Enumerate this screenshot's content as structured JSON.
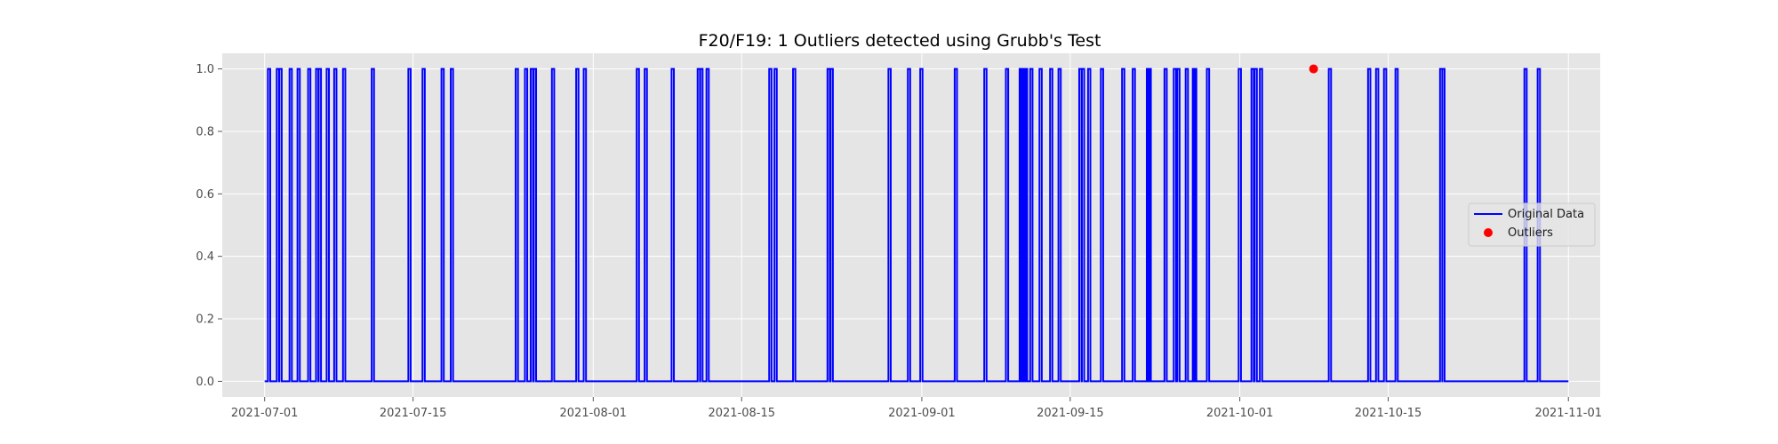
{
  "chart_data": {
    "type": "line",
    "title": "F20/F19: 1 Outliers detected using Grubb's Test",
    "xlabel": "",
    "ylabel": "",
    "x_range": [
      "2021-06-27",
      "2021-11-04"
    ],
    "ylim": [
      -0.05,
      1.05
    ],
    "grid": true,
    "legend_placement": "center-right",
    "x_ticks": [
      "2021-07-01",
      "2021-07-15",
      "2021-08-01",
      "2021-08-15",
      "2021-09-01",
      "2021-09-15",
      "2021-10-01",
      "2021-10-15",
      "2021-11-01"
    ],
    "y_ticks": [
      "0.0",
      "0.2",
      "0.4",
      "0.6",
      "0.7999999999999999",
      "1.0"
    ],
    "y_tick_labels": [
      "0.0",
      "0.2",
      "0.4",
      "0.6",
      "0.8",
      "1.0"
    ],
    "series": [
      {
        "name": "Original Data",
        "type": "line",
        "color": "#0000ff",
        "start": "2021-07-01",
        "end": "2021-11-01",
        "baseline": 0,
        "spike_value": 1,
        "spike_dates": [
          "2021-07-01T10:00",
          "2021-07-02T06:00",
          "2021-07-02T12:00",
          "2021-07-03T11:00",
          "2021-07-04T05:00",
          "2021-07-05T05:00",
          "2021-07-05T23:00",
          "2021-07-06T05:00",
          "2021-07-06T23:00",
          "2021-07-07T16:00",
          "2021-07-08T12:00",
          "2021-07-11T05:00",
          "2021-07-14T16:00",
          "2021-07-16T00:00",
          "2021-07-17T19:00",
          "2021-07-18T16:00",
          "2021-07-24T19:00",
          "2021-07-25T16:00",
          "2021-07-26T05:00",
          "2021-07-26T12:00",
          "2021-07-28T05:00",
          "2021-07-30T12:00",
          "2021-07-31T05:00",
          "2021-08-05T05:00",
          "2021-08-05T23:00",
          "2021-08-08T12:00",
          "2021-08-10T23:00",
          "2021-08-11T05:00",
          "2021-08-11T19:00",
          "2021-08-17T17:00",
          "2021-08-18T05:00",
          "2021-08-19T23:00",
          "2021-08-23T05:00",
          "2021-08-23T12:00",
          "2021-08-28T23:00",
          "2021-08-30T19:00",
          "2021-08-31T23:00",
          "2021-09-04T05:00",
          "2021-09-07T00:00",
          "2021-09-09T01:00",
          "2021-09-10T08:00",
          "2021-09-10T12:00",
          "2021-09-10T16:00",
          "2021-09-10T20:00",
          "2021-09-11T08:00",
          "2021-09-12T05:00",
          "2021-09-13T05:00",
          "2021-09-14T00:00",
          "2021-09-15T23:00",
          "2021-09-16T05:00",
          "2021-09-16T19:00",
          "2021-09-18T00:00",
          "2021-09-20T00:00",
          "2021-09-21T00:00",
          "2021-09-22T08:00",
          "2021-09-22T12:00",
          "2021-09-24T00:00",
          "2021-09-24T21:00",
          "2021-09-25T05:00",
          "2021-09-26T00:00",
          "2021-09-26T16:00",
          "2021-09-26T19:00",
          "2021-09-28T00:00",
          "2021-10-01T00:00",
          "2021-10-02T05:00",
          "2021-10-02T12:00",
          "2021-10-03T00:00",
          "2021-10-09T12:00",
          "2021-10-13T05:00",
          "2021-10-13T23:00",
          "2021-10-14T17:00",
          "2021-10-15T19:00",
          "2021-10-20T00:00",
          "2021-10-20T05:00",
          "2021-10-27T23:00",
          "2021-10-29T05:00"
        ]
      },
      {
        "name": "Outliers",
        "type": "scatter",
        "color": "#ff0000",
        "points": [
          {
            "x": "2021-10-07T23:00",
            "y": 1
          }
        ]
      }
    ]
  }
}
